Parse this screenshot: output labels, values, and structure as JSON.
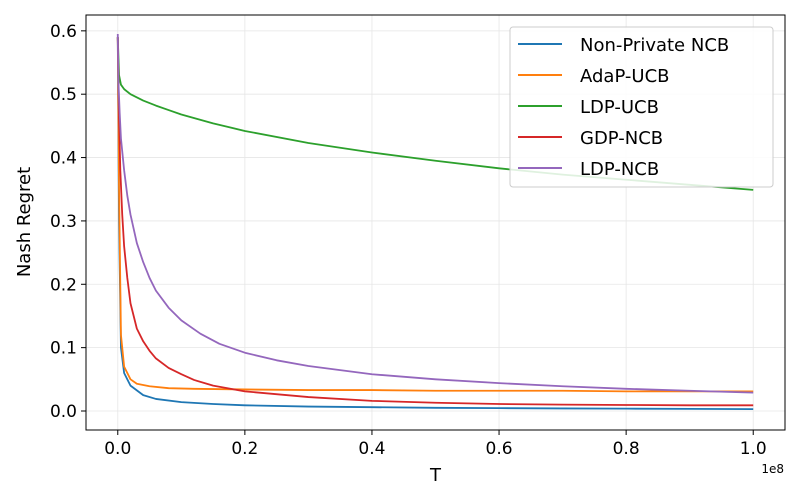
{
  "chart_data": {
    "type": "line",
    "xlabel": "T",
    "ylabel": "Nash Regret",
    "x_offset_label": "1e8",
    "xlim": [
      -0.05,
      1.05
    ],
    "ylim": [
      -0.03,
      0.625
    ],
    "x_ticks": [
      0.0,
      0.2,
      0.4,
      0.6,
      0.8,
      1.0
    ],
    "x_tick_labels": [
      "0.0",
      "0.2",
      "0.4",
      "0.6",
      "0.8",
      "1.0"
    ],
    "y_ticks": [
      0.0,
      0.1,
      0.2,
      0.3,
      0.4,
      0.5,
      0.6
    ],
    "y_tick_labels": [
      "0.0",
      "0.1",
      "0.2",
      "0.3",
      "0.4",
      "0.5",
      "0.6"
    ],
    "grid": true,
    "legend_position": "top-right",
    "series": [
      {
        "name": "Non-Private NCB",
        "color": "#1f77b4",
        "points": [
          [
            0.0,
            0.59
          ],
          [
            0.002,
            0.3
          ],
          [
            0.005,
            0.1
          ],
          [
            0.01,
            0.06
          ],
          [
            0.02,
            0.04
          ],
          [
            0.04,
            0.025
          ],
          [
            0.06,
            0.019
          ],
          [
            0.1,
            0.014
          ],
          [
            0.15,
            0.011
          ],
          [
            0.2,
            0.009
          ],
          [
            0.3,
            0.007
          ],
          [
            0.4,
            0.006
          ],
          [
            0.5,
            0.005
          ],
          [
            0.6,
            0.0045
          ],
          [
            0.7,
            0.004
          ],
          [
            0.8,
            0.0037
          ],
          [
            0.9,
            0.0034
          ],
          [
            1.0,
            0.003
          ]
        ]
      },
      {
        "name": "AdaP-UCB",
        "color": "#ff7f0e",
        "points": [
          [
            0.0,
            0.59
          ],
          [
            0.002,
            0.35
          ],
          [
            0.005,
            0.12
          ],
          [
            0.01,
            0.07
          ],
          [
            0.02,
            0.05
          ],
          [
            0.03,
            0.043
          ],
          [
            0.05,
            0.039
          ],
          [
            0.08,
            0.036
          ],
          [
            0.12,
            0.035
          ],
          [
            0.2,
            0.034
          ],
          [
            0.3,
            0.033
          ],
          [
            0.4,
            0.033
          ],
          [
            0.5,
            0.032
          ],
          [
            0.6,
            0.032
          ],
          [
            0.7,
            0.032
          ],
          [
            0.8,
            0.031
          ],
          [
            0.9,
            0.031
          ],
          [
            1.0,
            0.031
          ]
        ]
      },
      {
        "name": "LDP-UCB",
        "color": "#2ca02c",
        "points": [
          [
            0.0,
            0.59
          ],
          [
            0.002,
            0.53
          ],
          [
            0.005,
            0.515
          ],
          [
            0.01,
            0.508
          ],
          [
            0.02,
            0.5
          ],
          [
            0.04,
            0.49
          ],
          [
            0.06,
            0.482
          ],
          [
            0.08,
            0.475
          ],
          [
            0.1,
            0.468
          ],
          [
            0.15,
            0.454
          ],
          [
            0.2,
            0.442
          ],
          [
            0.3,
            0.423
          ],
          [
            0.4,
            0.408
          ],
          [
            0.5,
            0.395
          ],
          [
            0.6,
            0.383
          ],
          [
            0.7,
            0.373
          ],
          [
            0.8,
            0.365
          ],
          [
            0.9,
            0.357
          ],
          [
            1.0,
            0.349
          ]
        ]
      },
      {
        "name": "GDP-NCB",
        "color": "#d62728",
        "points": [
          [
            0.0,
            0.59
          ],
          [
            0.002,
            0.46
          ],
          [
            0.004,
            0.38
          ],
          [
            0.007,
            0.31
          ],
          [
            0.01,
            0.26
          ],
          [
            0.015,
            0.21
          ],
          [
            0.02,
            0.17
          ],
          [
            0.03,
            0.13
          ],
          [
            0.04,
            0.11
          ],
          [
            0.05,
            0.095
          ],
          [
            0.06,
            0.083
          ],
          [
            0.08,
            0.068
          ],
          [
            0.1,
            0.058
          ],
          [
            0.12,
            0.049
          ],
          [
            0.15,
            0.04
          ],
          [
            0.2,
            0.031
          ],
          [
            0.3,
            0.022
          ],
          [
            0.4,
            0.016
          ],
          [
            0.5,
            0.013
          ],
          [
            0.6,
            0.011
          ],
          [
            0.7,
            0.01
          ],
          [
            0.8,
            0.0095
          ],
          [
            0.9,
            0.009
          ],
          [
            1.0,
            0.009
          ]
        ]
      },
      {
        "name": "LDP-NCB",
        "color": "#9467bd",
        "points": [
          [
            0.0,
            0.595
          ],
          [
            0.001,
            0.52
          ],
          [
            0.003,
            0.47
          ],
          [
            0.005,
            0.43
          ],
          [
            0.01,
            0.38
          ],
          [
            0.015,
            0.34
          ],
          [
            0.02,
            0.31
          ],
          [
            0.03,
            0.265
          ],
          [
            0.04,
            0.235
          ],
          [
            0.05,
            0.21
          ],
          [
            0.06,
            0.19
          ],
          [
            0.08,
            0.163
          ],
          [
            0.1,
            0.143
          ],
          [
            0.13,
            0.122
          ],
          [
            0.16,
            0.106
          ],
          [
            0.2,
            0.092
          ],
          [
            0.25,
            0.08
          ],
          [
            0.3,
            0.071
          ],
          [
            0.4,
            0.058
          ],
          [
            0.5,
            0.05
          ],
          [
            0.6,
            0.044
          ],
          [
            0.7,
            0.039
          ],
          [
            0.8,
            0.035
          ],
          [
            0.9,
            0.032
          ],
          [
            1.0,
            0.029
          ]
        ]
      }
    ]
  }
}
